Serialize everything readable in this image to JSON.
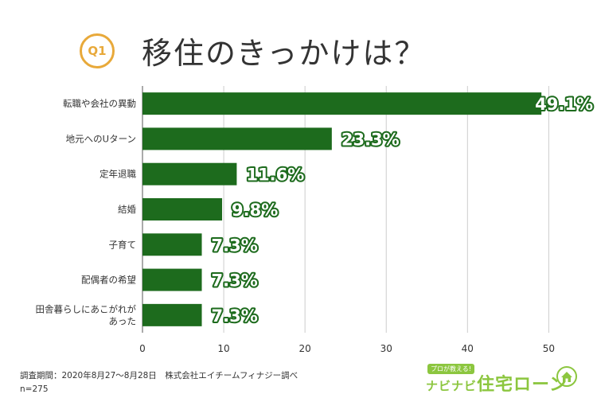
{
  "header": {
    "badge": "Q1",
    "title": "移住のきっかけは？"
  },
  "chart_data": {
    "type": "bar",
    "orientation": "horizontal",
    "categories": [
      [
        "転職や会社の異動"
      ],
      [
        "地元へのUターン"
      ],
      [
        "定年退職"
      ],
      [
        "結婚"
      ],
      [
        "子育て"
      ],
      [
        "配偶者の希望"
      ],
      [
        "田舎暮らしにあこがれが",
        "あった"
      ]
    ],
    "values": [
      49.1,
      23.3,
      11.6,
      9.8,
      7.3,
      7.3,
      7.3
    ],
    "value_labels": [
      "49.1%",
      "23.3%",
      "11.6%",
      "9.8%",
      "7.3%",
      "7.3%",
      "7.3%"
    ],
    "xlim": [
      0,
      53
    ],
    "xticks": [
      0,
      10,
      20,
      30,
      40,
      50
    ],
    "grid": "vertical",
    "bar_color": "#1d6b1d",
    "grid_color": "#cccccc"
  },
  "footer": {
    "survey": "調査期間：2020年8月27〜8月28日　株式会社エイチームフィナジー調べ",
    "sample": "n=275"
  },
  "logo": {
    "tag": "プロが教える!",
    "kana": "ナビナビ",
    "text": "住宅ローン",
    "icon": "house-icon",
    "color": "#8cc63f"
  }
}
